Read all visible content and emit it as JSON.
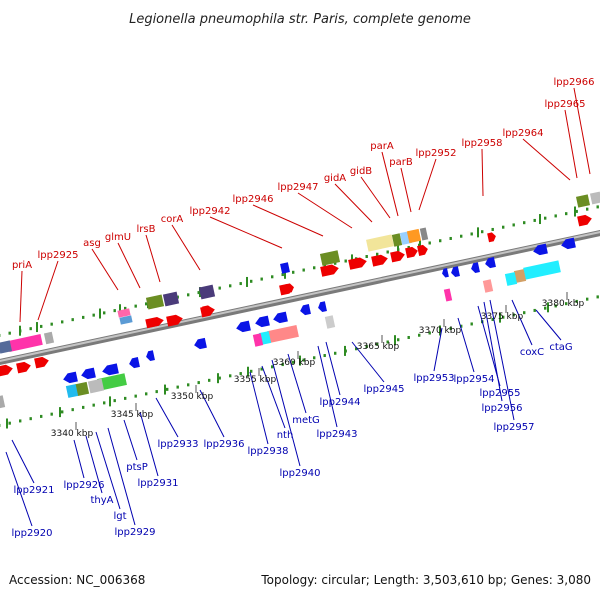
{
  "title": "Legionella pneumophila str. Paris, complete genome",
  "footer": {
    "accession": "Accession: NC_006368",
    "topology": "Topology: circular; Length: 3,503,610 bp; Genes: 3,080"
  },
  "colors": {
    "forward_label": "#cc0000",
    "reverse_label": "#0000b0",
    "forward_gene": "#ee0000",
    "reverse_gene": "#0a14e6",
    "track_dots": "#2e8b22",
    "backbone": "#9a9a9a"
  },
  "ticks": [
    "3340 kbp",
    "3345 kbp",
    "3350 kbp",
    "3355 kbp",
    "3360 kbp",
    "3365 kbp",
    "3370 kbp",
    "3375 kbp",
    "3380 kbp"
  ],
  "forward_labels": [
    "priA",
    "lpp2925",
    "asg",
    "glmU",
    "lrsB",
    "corA",
    "lpp2942",
    "lpp2946",
    "lpp2947",
    "gidA",
    "gidB",
    "parA",
    "parB",
    "lpp2952",
    "lpp2958",
    "lpp2964",
    "lpp2965",
    "lpp2966"
  ],
  "reverse_labels": [
    "lpp2921",
    "lpp2920",
    "lpp2926",
    "thyA",
    "lgt",
    "lpp2929",
    "ptsP",
    "lpp2931",
    "lpp2933",
    "lpp2936",
    "lpp2938",
    "nth",
    "lpp2940",
    "metG",
    "lpp2943",
    "lpp2944",
    "lpp2945",
    "lpp2953",
    "lpp2954",
    "lpp2955",
    "lpp2956",
    "lpp2957",
    "coxC",
    "ctaG"
  ]
}
